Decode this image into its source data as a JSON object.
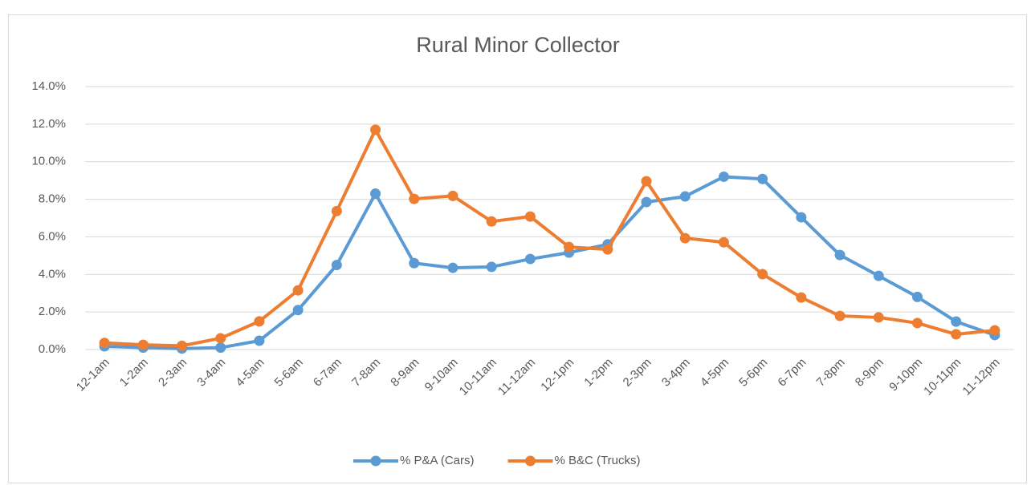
{
  "chart_data": {
    "type": "line",
    "title": "Rural Minor Collector",
    "categories": [
      "12-1am",
      "1-2am",
      "2-3am",
      "3-4am",
      "4-5am",
      "5-6am",
      "6-7am",
      "7-8am",
      "8-9am",
      "9-10am",
      "10-11am",
      "11-12am",
      "12-1pm",
      "1-2pm",
      "2-3pm",
      "3-4pm",
      "4-5pm",
      "5-6pm",
      "6-7pm",
      "7-8pm",
      "8-9pm",
      "9-10pm",
      "10-11pm",
      "11-12pm"
    ],
    "series": [
      {
        "name": "% P&A (Cars)",
        "color": "#5b9bd5",
        "values": [
          0.17,
          0.1,
          0.05,
          0.1,
          0.47,
          2.1,
          4.5,
          8.3,
          4.6,
          4.35,
          4.4,
          4.82,
          5.16,
          5.6,
          7.85,
          8.15,
          9.2,
          9.08,
          7.04,
          5.03,
          3.92,
          2.8,
          1.49,
          0.77
        ]
      },
      {
        "name": "% B&C (Trucks)",
        "color": "#ed7d31",
        "values": [
          0.35,
          0.25,
          0.2,
          0.6,
          1.5,
          3.15,
          7.37,
          11.7,
          8.02,
          8.18,
          6.82,
          7.08,
          5.46,
          5.33,
          8.96,
          5.93,
          5.71,
          4.01,
          2.77,
          1.79,
          1.71,
          1.41,
          0.81,
          1.02
        ]
      }
    ],
    "ylim": [
      0,
      14
    ],
    "yticks": [
      {
        "value": 0,
        "label": "0.0%"
      },
      {
        "value": 2,
        "label": "2.0%"
      },
      {
        "value": 4,
        "label": "4.0%"
      },
      {
        "value": 6,
        "label": "6.0%"
      },
      {
        "value": 8,
        "label": "8.0%"
      },
      {
        "value": 10,
        "label": "10.0%"
      },
      {
        "value": 12,
        "label": "12.0%"
      },
      {
        "value": 14,
        "label": "14.0%"
      }
    ],
    "grid": true,
    "legend": "bottom"
  }
}
